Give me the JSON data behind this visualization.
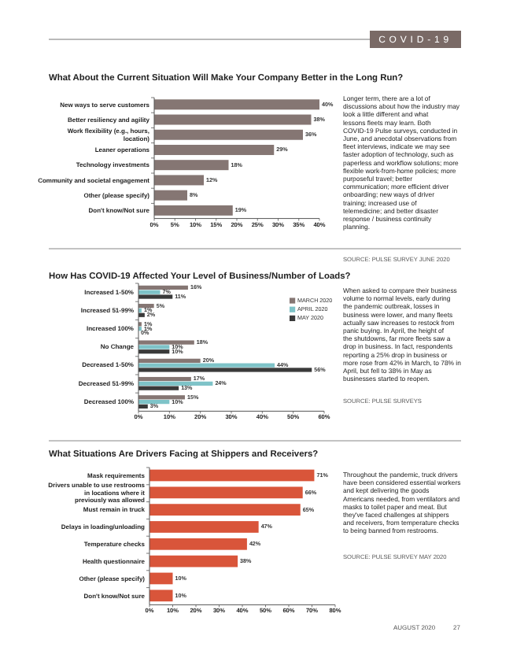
{
  "chart_data": [
    {
      "type": "bar",
      "orientation": "horizontal",
      "title": "What About the Current Situation Will Make Your Company Better in the Long Run?",
      "categories": [
        "New ways to serve customers",
        "Better resiliency and agility",
        "Work flexibility (e.g., hours, location)",
        "Leaner operations",
        "Technology investments",
        "Community and societal engagement",
        "Other (please specify)",
        "Don't know/Not sure"
      ],
      "values": [
        40,
        38,
        36,
        29,
        18,
        12,
        8,
        19
      ],
      "value_labels": [
        "40%",
        "38%",
        "36%",
        "29%",
        "18%",
        "12%",
        "8%",
        "19%"
      ],
      "color": "#857673",
      "xlim": [
        0,
        40
      ],
      "xticks": [
        {
          "value": 0,
          "label": "0%"
        },
        {
          "value": 5,
          "label": "5%"
        },
        {
          "value": 10,
          "label": "10%"
        },
        {
          "value": 15,
          "label": "15%"
        },
        {
          "value": 20,
          "label": "20%"
        },
        {
          "value": 25,
          "label": "25%"
        },
        {
          "value": 30,
          "label": "30%"
        },
        {
          "value": 35,
          "label": "35%"
        },
        {
          "value": 40,
          "label": "40%"
        }
      ],
      "annotations": [
        "Longer term, there are a lot of discussions about how the industry may look a little different and what lessons fleets may learn. Both COVID-19 Pulse surveys, conducted in June, and anecdotal observations from fleet interviews, indicate we may see faster adoption of technology, such as paperless and workflow solutions; more flexible work-from-home policies; more purposeful travel; better communication; more efficient driver onboarding; new ways of driver training; increased use of telemedicine; and better disaster response / business continuity planning.",
        "SOURCE: PULSE SURVEY JUNE 2020",
        "COVID-19"
      ]
    },
    {
      "type": "bar",
      "orientation": "horizontal",
      "title": "How Has COVID-19 Affected Your Level of Business/Number of Loads?",
      "categories": [
        "Increased 1-50%",
        "Increased 51-99%",
        "Increased 100%",
        "No Change",
        "Decreased 1-50%",
        "Decreased 51-99%",
        "Decreased 100%"
      ],
      "series": [
        {
          "name": "MARCH 2020",
          "color": "#857673",
          "values": [
            16,
            5,
            1,
            18,
            20,
            17,
            15
          ],
          "value_labels": [
            "16%",
            "5%",
            "1%",
            "18%",
            "20%",
            "17%",
            "15%"
          ]
        },
        {
          "name": "APRIL 2020",
          "color": "#7ec3c8",
          "values": [
            7,
            1,
            1,
            10,
            44,
            24,
            10
          ],
          "value_labels": [
            "7%",
            "1%",
            "1%",
            "10%",
            "44%",
            "24%",
            "10%"
          ]
        },
        {
          "name": "MAY 2020",
          "color": "#3a3a3a",
          "values": [
            11,
            2,
            0,
            10,
            56,
            13,
            3
          ],
          "value_labels": [
            "11%",
            "2%",
            "0%",
            "10%",
            "56%",
            "13%",
            "3%"
          ]
        }
      ],
      "xlim": [
        0,
        60
      ],
      "xticks": [
        {
          "value": 0,
          "label": "0%"
        },
        {
          "value": 10,
          "label": "10%"
        },
        {
          "value": 20,
          "label": "20%"
        },
        {
          "value": 30,
          "label": "30%"
        },
        {
          "value": 40,
          "label": "40%"
        },
        {
          "value": 50,
          "label": "50%"
        },
        {
          "value": 60,
          "label": "60%"
        }
      ],
      "legend": "top right",
      "annotations": [
        "When asked to compare their business volume to normal levels, early during the pandemic outbreak, losses in business were lower, and many fleets actually saw increases to restock from panic buying. In April, the height of the shutdowns, far more fleets saw a drop in business. In fact, respondents reporting a 25% drop in business or more rose from 42% in March, to 78% in April, but fell to 38% in May as businesses started to reopen.",
        "SOURCE: PULSE SURVEYS"
      ]
    },
    {
      "type": "bar",
      "orientation": "horizontal",
      "title": "What Situations Are Drivers Facing at Shippers and Receivers?",
      "categories": [
        "Mask requirements",
        "Drivers unable to use restrooms in locations where it previously was allowed",
        "Must remain in truck",
        "Delays in loading/unloading",
        "Temperature checks",
        "Health questionnaire",
        "Other (please specify)",
        "Don't know/Not sure"
      ],
      "values": [
        71,
        66,
        65,
        47,
        42,
        38,
        10,
        10
      ],
      "value_labels": [
        "71%",
        "66%",
        "65%",
        "47%",
        "42%",
        "38%",
        "10%",
        "10%"
      ],
      "color": "#d9553a",
      "xlim": [
        0,
        80
      ],
      "xticks": [
        {
          "value": 0,
          "label": "0%"
        },
        {
          "value": 10,
          "label": "10%"
        },
        {
          "value": 20,
          "label": "20%"
        },
        {
          "value": 30,
          "label": "30%"
        },
        {
          "value": 40,
          "label": "40%"
        },
        {
          "value": 50,
          "label": "50%"
        },
        {
          "value": 60,
          "label": "60%"
        },
        {
          "value": 70,
          "label": "70%"
        },
        {
          "value": 80,
          "label": "80%"
        }
      ],
      "annotations": [
        "Throughout the pandemic, truck drivers have been considered essential workers and kept delivering the goods Americans needed, from ventilators and masks to toilet paper and meat. But they've faced challenges at shippers and receivers, from temperature checks to being banned from restrooms.",
        "SOURCE: PULSE SURVEY MAY 2020",
        "AUGUST 2020",
        "27"
      ]
    }
  ]
}
